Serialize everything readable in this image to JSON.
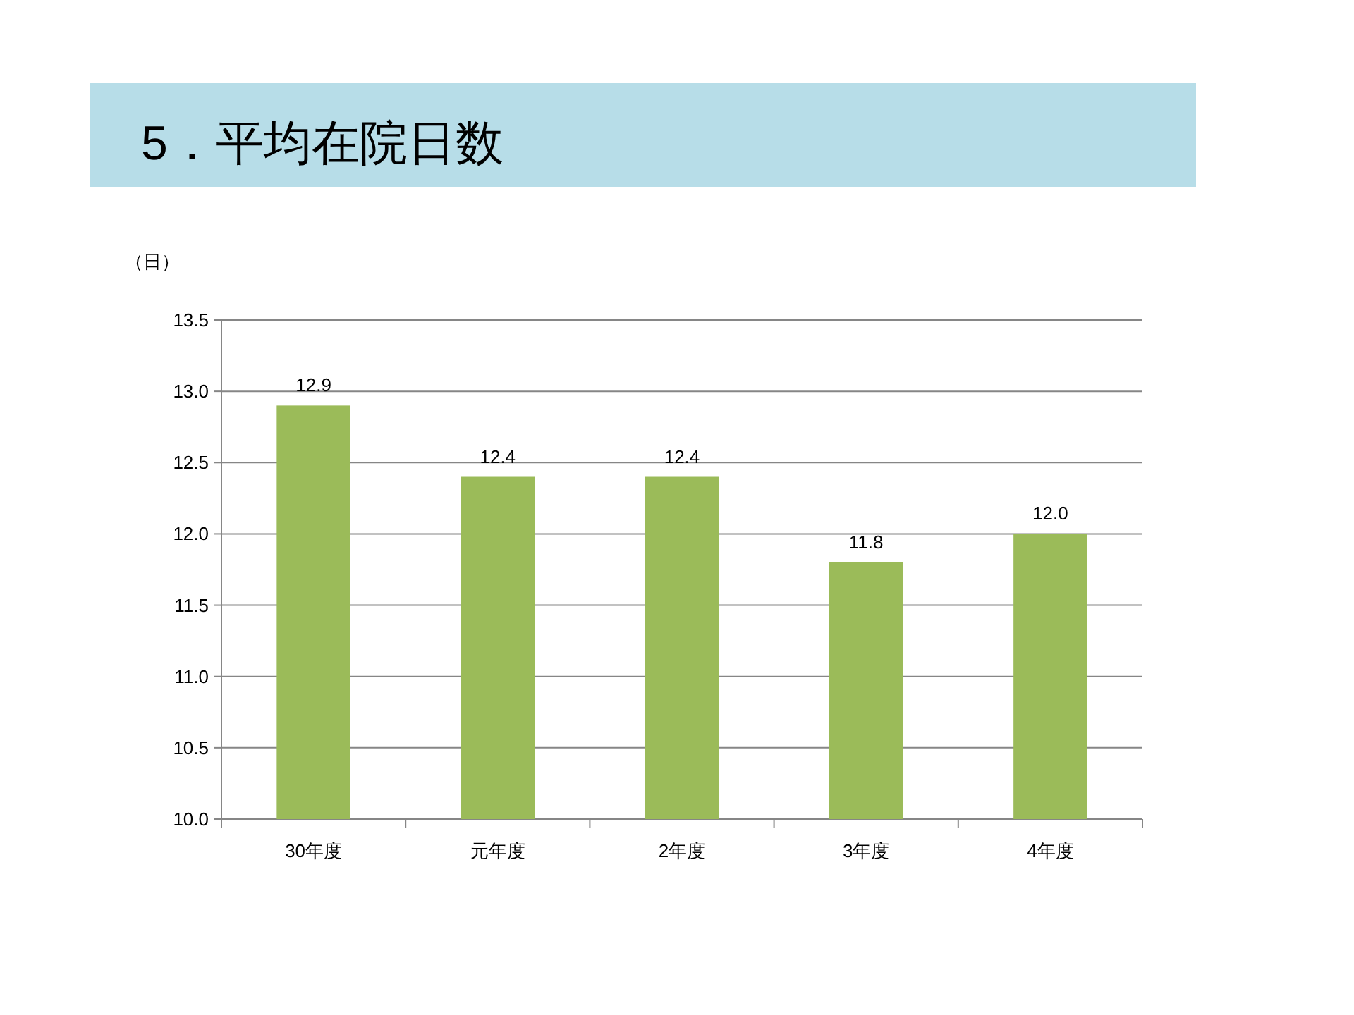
{
  "chart_data": {
    "type": "bar",
    "title": "5．平均在院日数",
    "ylabel": "（日）",
    "categories": [
      "30年度",
      "元年度",
      "2年度",
      "3年度",
      "4年度"
    ],
    "values": [
      12.9,
      12.4,
      12.4,
      11.8,
      12.0
    ],
    "value_labels": [
      "12.9",
      "12.4",
      "12.4",
      "11.8",
      "12.0"
    ],
    "color": "#9bbb59",
    "ylim": [
      10,
      13.5
    ],
    "yticks": [
      {
        "value": 10,
        "label": "10.0"
      },
      {
        "value": 10.5,
        "label": "10.5"
      },
      {
        "value": 11,
        "label": "11.0"
      },
      {
        "value": 11.5,
        "label": "11.5"
      },
      {
        "value": 12,
        "label": "12.0"
      },
      {
        "value": 12.5,
        "label": "12.5"
      },
      {
        "value": 13,
        "label": "13.0"
      },
      {
        "value": 13.5,
        "label": "13.5"
      }
    ],
    "grid": "y"
  }
}
